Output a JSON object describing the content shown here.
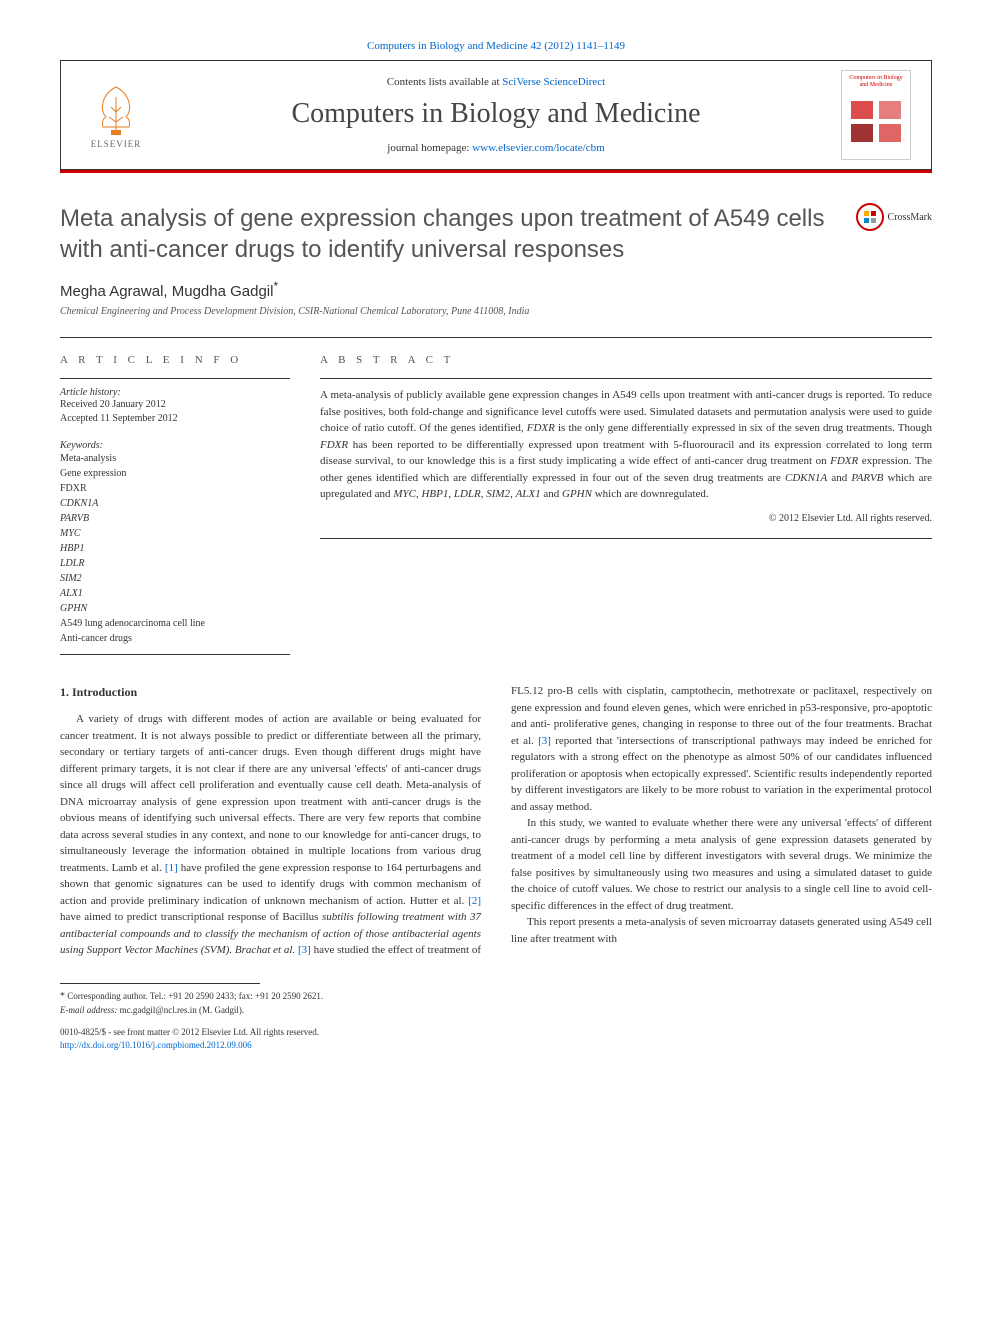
{
  "banner_link": {
    "text_before": "Computers in Biology and Medicine 42 (2012) 1141–1149",
    "href_text": ""
  },
  "header": {
    "contents_before": "Contents lists available at ",
    "contents_link": "SciVerse ScienceDirect",
    "journal_title": "Computers in Biology and Medicine",
    "homepage_before": "journal homepage: ",
    "homepage_link": "www.elsevier.com/locate/cbm",
    "elsevier": "ELSEVIER",
    "cover_title": "Computers in Biology and Medicine"
  },
  "crossmark": "CrossMark",
  "article": {
    "title": "Meta analysis of gene expression changes upon treatment of A549 cells with anti-cancer drugs to identify universal responses",
    "authors": "Megha Agrawal, Mugdha Gadgil",
    "author_mark": "*",
    "affiliation": "Chemical Engineering and Process Development Division, CSIR-National Chemical Laboratory, Pune 411008, India"
  },
  "info": {
    "header": "A R T I C L E  I N F O",
    "history_label": "Article history:",
    "received": "Received 20 January 2012",
    "accepted": "Accepted 11 September 2012",
    "keywords_label": "Keywords:",
    "keywords": [
      {
        "t": "Meta-analysis",
        "i": false
      },
      {
        "t": "Gene expression",
        "i": false
      },
      {
        "t": "FDXR",
        "i": false
      },
      {
        "t": "CDKN1A",
        "i": true
      },
      {
        "t": "PARVB",
        "i": true
      },
      {
        "t": "MYC",
        "i": true
      },
      {
        "t": "HBP1",
        "i": true
      },
      {
        "t": "LDLR",
        "i": true
      },
      {
        "t": "SIM2",
        "i": true
      },
      {
        "t": "ALX1",
        "i": true
      },
      {
        "t": "GPHN",
        "i": true
      },
      {
        "t": "A549 lung adenocarcinoma cell line",
        "i": false
      },
      {
        "t": "Anti-cancer drugs",
        "i": false
      }
    ]
  },
  "abstract": {
    "header": "A B S T R A C T",
    "text": "A meta-analysis of publicly available gene expression changes in A549 cells upon treatment with anti-cancer drugs is reported. To reduce false positives, both fold-change and significance level cutoffs were used. Simulated datasets and permutation analysis were used to guide choice of ratio cutoff. Of the genes identified, FDXR is the only gene differentially expressed in six of the seven drug treatments. Though FDXR has been reported to be differentially expressed upon treatment with 5-fluorouracil and its expression correlated to long term disease survival, to our knowledge this is a first study implicating a wide effect of anti-cancer drug treatment on FDXR expression. The other genes identified which are differentially expressed in four out of the seven drug treatments are CDKN1A and PARVB which are upregulated and MYC, HBP1, LDLR, SIM2, ALX1 and GPHN which are downregulated.",
    "copyright": "© 2012 Elsevier Ltd. All rights reserved."
  },
  "body": {
    "heading": "1. Introduction",
    "p1": "A variety of drugs with different modes of action are available or being evaluated for cancer treatment. It is not always possible to predict or differentiate between all the primary, secondary or tertiary targets of anti-cancer drugs. Even though different drugs might have different primary targets, it is not clear if there are any universal 'effects' of anti-cancer drugs since all drugs will affect cell proliferation and eventually cause cell death. Meta-analysis of DNA microarray analysis of gene expression upon treatment with anti-cancer drugs is the obvious means of identifying such universal effects. There are very few reports that combine data across several studies in any context, and none to our knowledge for anti-cancer drugs, to simultaneously leverage the information obtained in multiple locations from various drug treatments. Lamb et al. ",
    "ref1": "[1]",
    "p1b": " have profiled the gene expression response to 164 perturbagens and shown that genomic signatures can be used to identify drugs with common mechanism of action and provide preliminary indication of unknown mechanism of action. Hutter et al. ",
    "ref2": "[2]",
    "p1c": " have aimed to predict transcriptional response of Bacillus ",
    "p2a": "subtilis following treatment with 37 antibacterial compounds and to classify the mechanism of action of those antibacterial agents using Support Vector Machines (SVM). Brachat et al. ",
    "ref3": "[3]",
    "p2b": " have studied the effect of treatment of FL5.12 pro-B cells with cisplatin, camptothecin, methotrexate or paclitaxel, respectively on gene expression and found eleven genes, which were enriched in p53-responsive, pro-apoptotic and anti- proliferative genes, changing in response to three out of the four treatments. Brachat et al. ",
    "ref3b": "[3]",
    "p2c": " reported that 'intersections of transcriptional pathways may indeed be enriched for regulators with a strong effect on the phenotype as almost 50% of our candidates influenced proliferation or apoptosis when ectopically expressed'. Scientific results independently reported by different investigators are likely to be more robust to variation in the experimental protocol and assay method.",
    "p3": "In this study, we wanted to evaluate whether there were any universal 'effects' of different anti-cancer drugs by performing a meta analysis of gene expression datasets generated by treatment of a model cell line by different investigators with several drugs. We minimize the false positives by simultaneously using two measures and using a simulated dataset to guide the choice of cutoff values. We chose to restrict our analysis to a single cell line to avoid cell-specific differences in the effect of drug treatment.",
    "p4": "This report presents a meta-analysis of seven microarray datasets generated using A549 cell line after treatment with"
  },
  "footnote": {
    "corr": "Corresponding author. Tel.: +91 20 2590 2433; fax: +91 20 2590 2621.",
    "email_label": "E-mail address: ",
    "email": "mc.gadgil@ncl.res.in (M. Gadgil)."
  },
  "footer": {
    "issn": "0010-4825/$ - see front matter © 2012 Elsevier Ltd. All rights reserved.",
    "doi": "http://dx.doi.org/10.1016/j.compbiomed.2012.09.006"
  },
  "colors": {
    "link": "#0066cc",
    "red": "#c00",
    "text": "#333",
    "gray": "#555"
  }
}
